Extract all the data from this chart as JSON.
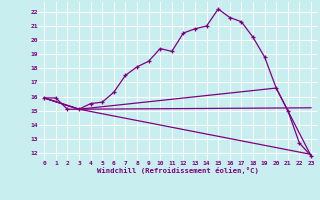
{
  "xlabel": "Windchill (Refroidissement éolien,°C)",
  "bg_color": "#c8eef0",
  "grid_color": "#ffffff",
  "line_color": "#800080",
  "xlim": [
    -0.5,
    23.5
  ],
  "ylim": [
    11.5,
    22.7
  ],
  "yticks": [
    12,
    13,
    14,
    15,
    16,
    17,
    18,
    19,
    20,
    21,
    22
  ],
  "xticks": [
    0,
    1,
    2,
    3,
    4,
    5,
    6,
    7,
    8,
    9,
    10,
    11,
    12,
    13,
    14,
    15,
    16,
    17,
    18,
    19,
    20,
    21,
    22,
    23
  ],
  "line1_x": [
    0,
    1,
    2,
    3,
    4,
    5,
    6,
    7,
    8,
    9,
    10,
    11,
    12,
    13,
    14,
    15,
    16,
    17,
    18,
    19,
    20,
    21,
    22,
    23
  ],
  "line1_y": [
    15.9,
    15.9,
    15.1,
    15.1,
    15.5,
    15.6,
    16.3,
    17.5,
    18.1,
    18.5,
    19.4,
    19.2,
    20.5,
    20.8,
    21.0,
    22.2,
    21.6,
    21.3,
    20.2,
    18.8,
    16.6,
    15.0,
    12.7,
    11.8
  ],
  "line2_x": [
    0,
    3,
    20,
    23
  ],
  "line2_y": [
    15.9,
    15.1,
    16.6,
    11.8
  ],
  "line3_x": [
    0,
    3,
    23
  ],
  "line3_y": [
    15.9,
    15.1,
    15.2
  ],
  "line4_x": [
    0,
    3,
    23
  ],
  "line4_y": [
    15.9,
    15.1,
    11.9
  ]
}
